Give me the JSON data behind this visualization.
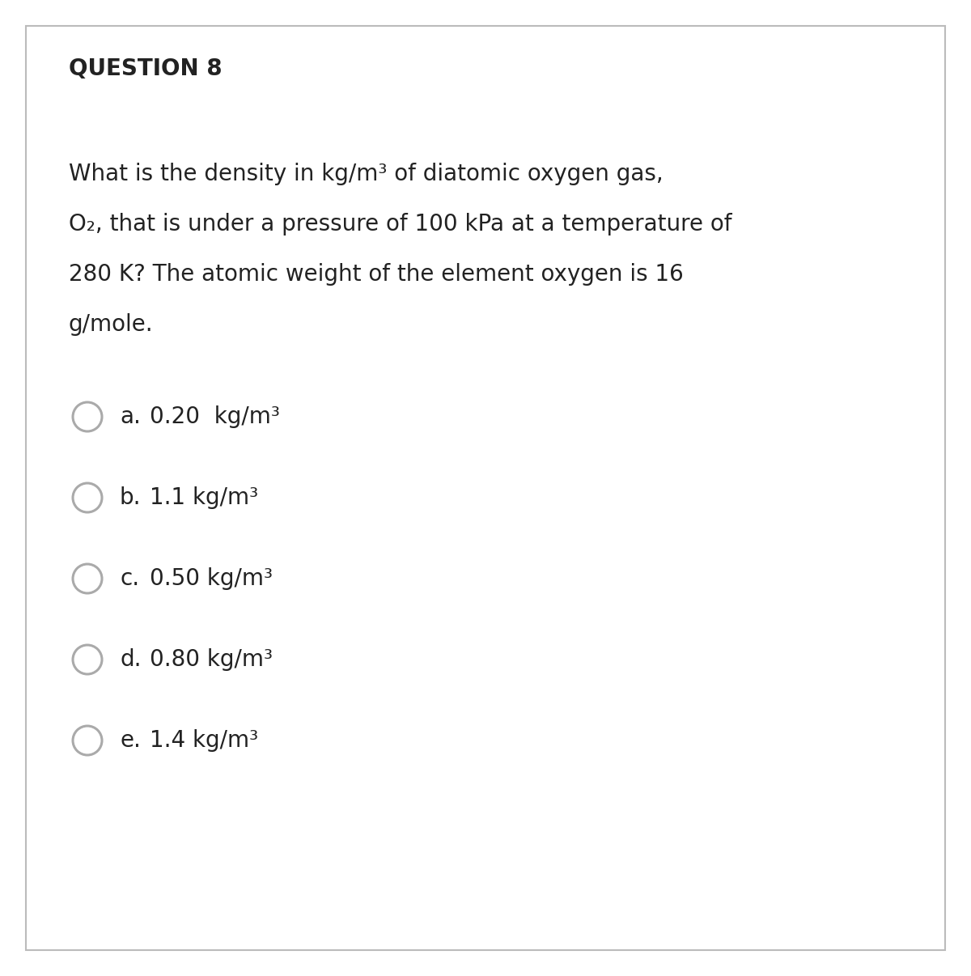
{
  "title": "QUESTION 8",
  "question_lines": [
    "What is the density in kg/m³ of diatomic oxygen gas,",
    "O₂, that is under a pressure of 100 kPa at a temperature of",
    "280 K? The atomic weight of the element oxygen is 16",
    "g/mole."
  ],
  "options": [
    {
      "label": "a.",
      "text": "0.20  kg/m³"
    },
    {
      "label": "b.",
      "text": "1.1 kg/m³"
    },
    {
      "label": "c.",
      "text": "0.50 kg/m³"
    },
    {
      "label": "d.",
      "text": "0.80 kg/m³"
    },
    {
      "label": "e.",
      "text": "1.4 kg/m³"
    }
  ],
  "bg_color": "#ffffff",
  "text_color": "#222222",
  "border_color": "#bbbbbb",
  "circle_color": "#aaaaaa",
  "title_fontsize": 20,
  "question_fontsize": 20,
  "option_fontsize": 20,
  "figsize": [
    12.0,
    12.06
  ],
  "dpi": 100
}
